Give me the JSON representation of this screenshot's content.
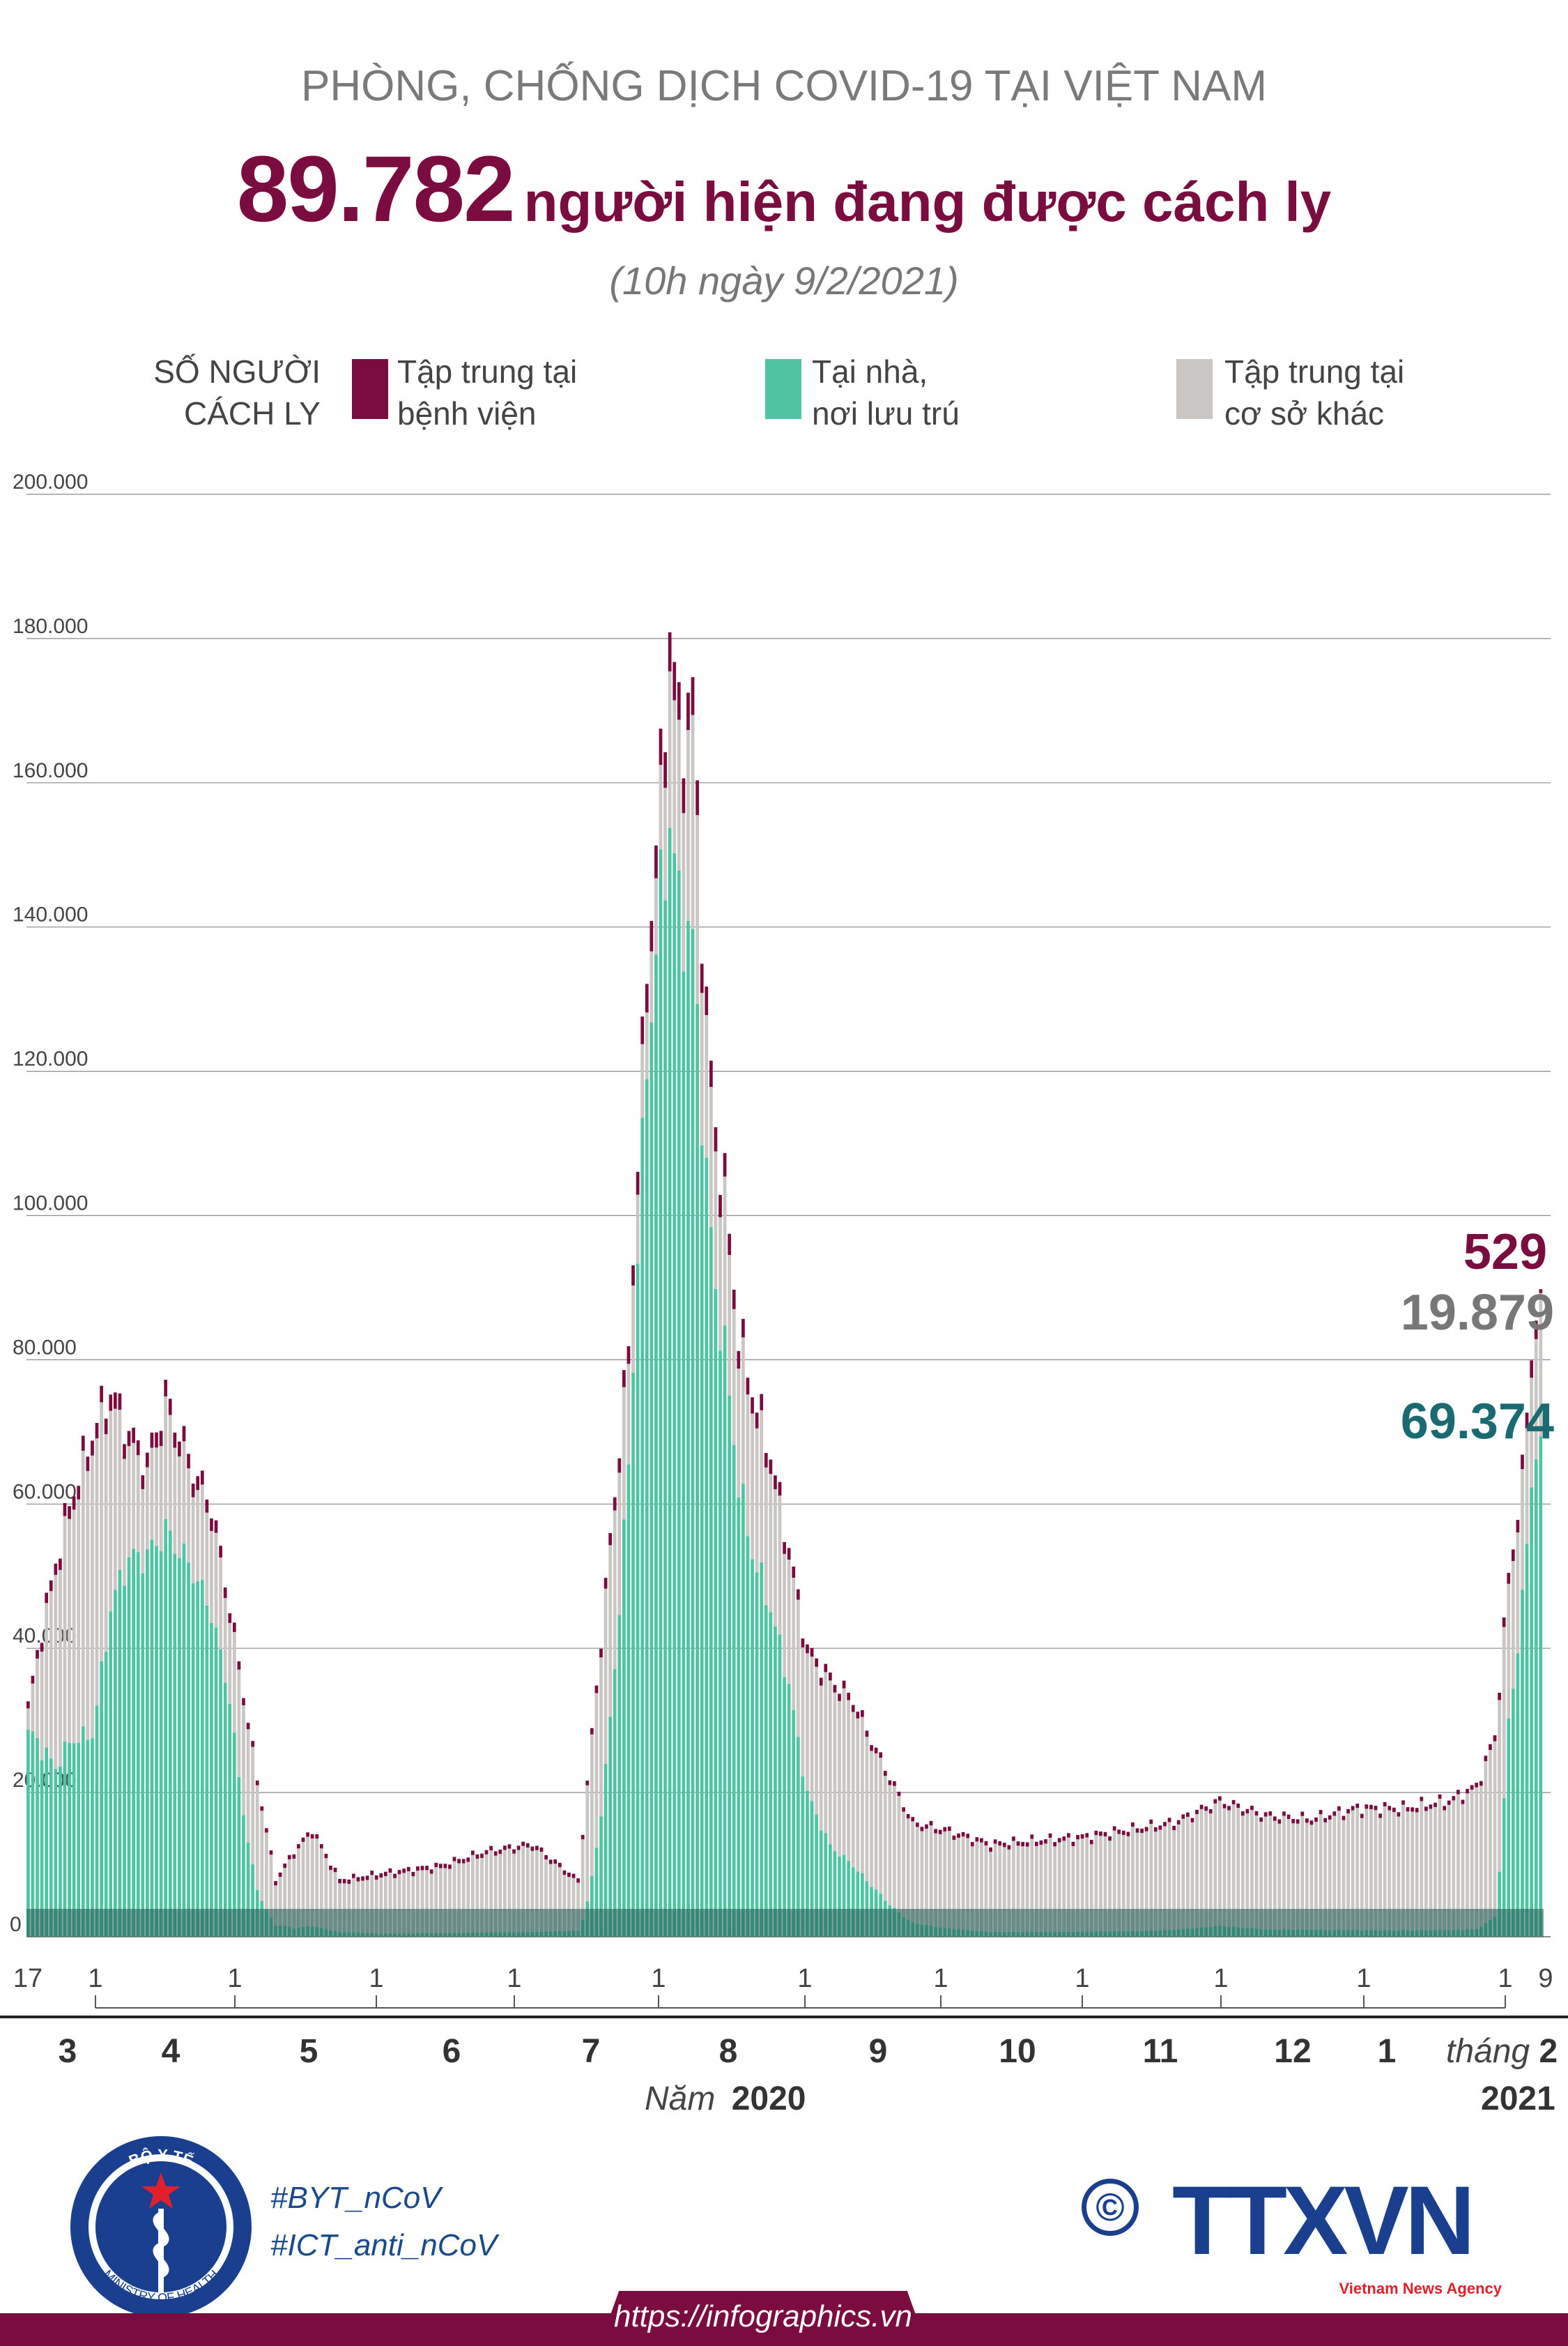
{
  "header": {
    "supertitle": "PHÒNG, CHỐNG DỊCH COVID-19 TẠI VIỆT NAM",
    "big_number": "89.782",
    "headline_rest": "người hiện đang được cách ly",
    "subtitle": "(10h ngày 9/2/2021)"
  },
  "legend": {
    "axis_title_line1": "SỐ NGƯỜI",
    "axis_title_line2": "CÁCH LY",
    "items": [
      {
        "line1": "Tập trung tại",
        "line2": "bệnh viện",
        "color": "#7b0c3f"
      },
      {
        "line1": "Tại nhà,",
        "line2": "nơi lưu trú",
        "color": "#4fc4a3"
      },
      {
        "line1": "Tập trung tại",
        "line2": "cơ sở khác",
        "color": "#c9c6c4"
      }
    ]
  },
  "annotations": {
    "hospital": "529",
    "other_facility": "19.879",
    "home": "69.374"
  },
  "x_axis": {
    "day_ticks": [
      "17",
      "1",
      "1",
      "1",
      "1",
      "1",
      "1",
      "1",
      "1",
      "1",
      "1",
      "1",
      "1",
      "9"
    ],
    "months": [
      "3",
      "4",
      "5",
      "6",
      "7",
      "8",
      "9",
      "10",
      "11",
      "12",
      "1",
      "2"
    ],
    "month_prefix": "tháng",
    "year_prefix": "Năm",
    "year_2020": "2020",
    "year_2021": "2021"
  },
  "footer": {
    "logo_top": "BỘ Y TẾ",
    "logo_bottom": "MINISTRY OF HEALTH",
    "hashtag1": "#BYT_nCoV",
    "hashtag2": "#ICT_anti_nCoV",
    "agency": "TTXVN",
    "agency_sub": "Vietnam News Agency",
    "url": "https://infographics.vn"
  },
  "chart_data": {
    "type": "bar",
    "stacked": true,
    "ylim": [
      0,
      200000
    ],
    "y_ticks": [
      "0",
      "20.000",
      "40.000",
      "60.000",
      "80.000",
      "100.000",
      "120.000",
      "140.000",
      "160.000",
      "180.000",
      "200.000"
    ],
    "grid": true,
    "legend_position": "top",
    "series_order": [
      "home",
      "other",
      "hospital"
    ],
    "colors": {
      "home": "#4fc4a3",
      "other": "#c9c6c4",
      "hospital": "#7b0c3f"
    },
    "keyframes_day_index": [
      0,
      3,
      6,
      9,
      14,
      18,
      22,
      26,
      30,
      36,
      40,
      44,
      50,
      54,
      58,
      62,
      68,
      78,
      90,
      100,
      110,
      120,
      131,
      133,
      135,
      138,
      140,
      142,
      145,
      148,
      150,
      152,
      155,
      158,
      162,
      166,
      170,
      175,
      180,
      185,
      193,
      200,
      210,
      220,
      230,
      240,
      250,
      260,
      270,
      280,
      290,
      300,
      310,
      316,
      320,
      323,
      326,
      328,
      330
    ],
    "keyframes_total": [
      32000,
      43000,
      52000,
      60000,
      70000,
      76000,
      70000,
      66000,
      75000,
      65000,
      60000,
      46000,
      22000,
      8000,
      12000,
      15000,
      8000,
      9000,
      10000,
      12000,
      13000,
      8000,
      82000,
      108000,
      135000,
      160000,
      182000,
      168000,
      172000,
      128000,
      112000,
      104000,
      84000,
      76000,
      67000,
      54000,
      40000,
      36000,
      33000,
      26000,
      16000,
      15000,
      13000,
      13500,
      14000,
      15000,
      16000,
      19000,
      17000,
      16500,
      18000,
      18000,
      19000,
      21000,
      28000,
      50000,
      64000,
      82000,
      89782
    ],
    "keyframes_home_share": [
      0.88,
      0.6,
      0.45,
      0.45,
      0.4,
      0.6,
      0.75,
      0.8,
      0.75,
      0.78,
      0.75,
      0.72,
      0.3,
      0.2,
      0.1,
      0.1,
      0.08,
      0.05,
      0.05,
      0.05,
      0.05,
      0.1,
      0.8,
      0.88,
      0.9,
      0.9,
      0.85,
      0.85,
      0.8,
      0.82,
      0.8,
      0.78,
      0.75,
      0.7,
      0.68,
      0.65,
      0.5,
      0.35,
      0.3,
      0.25,
      0.12,
      0.08,
      0.05,
      0.05,
      0.05,
      0.05,
      0.06,
      0.08,
      0.06,
      0.06,
      0.05,
      0.05,
      0.05,
      0.05,
      0.1,
      0.6,
      0.72,
      0.78,
      0.77
    ],
    "hospital_note": "hospital segment small dark cap on each bar; last day 529"
  }
}
